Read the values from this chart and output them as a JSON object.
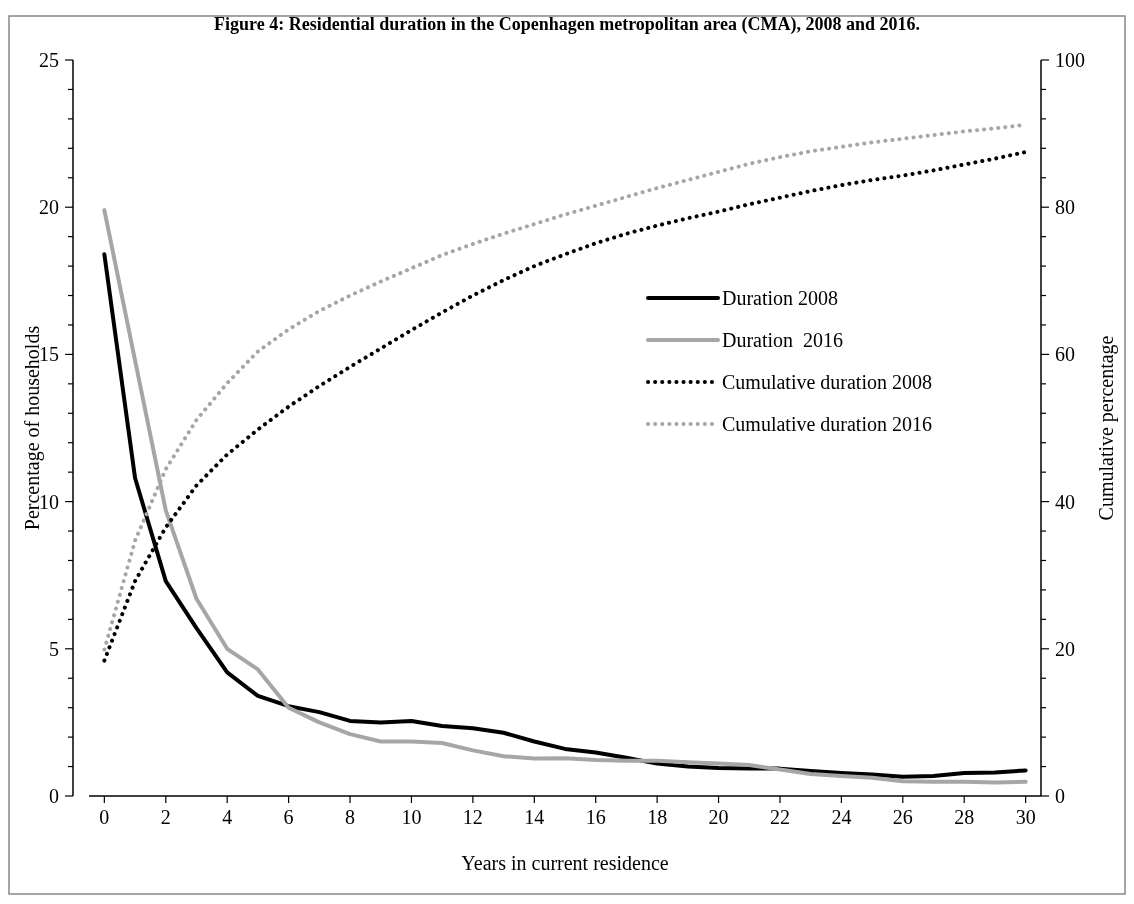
{
  "chart_data": {
    "type": "line",
    "title": "Figure 4: Residential duration in the Copenhagen metropolitan area (CMA), 2008 and 2016.",
    "xlabel": "Years in current residence",
    "ylabel": "Percentage of households",
    "y2label": "Cumulative percentage",
    "x": [
      0,
      1,
      2,
      3,
      4,
      5,
      6,
      7,
      8,
      9,
      10,
      11,
      12,
      13,
      14,
      15,
      16,
      17,
      18,
      19,
      20,
      21,
      22,
      23,
      24,
      25,
      26,
      27,
      28,
      29,
      30
    ],
    "xlim": [
      -0.5,
      30.5
    ],
    "xticks": [
      0,
      2,
      4,
      6,
      8,
      10,
      12,
      14,
      16,
      18,
      20,
      22,
      24,
      26,
      28,
      30
    ],
    "ylim": [
      0,
      25
    ],
    "yticks": [
      0,
      {
        "value": 1,
        "label": null
      },
      {
        "value": 2,
        "label": null
      },
      {
        "value": 3,
        "label": null
      },
      {
        "value": 4,
        "label": null
      },
      5,
      {
        "value": 6,
        "label": null
      },
      {
        "value": 7,
        "label": null
      },
      {
        "value": 8,
        "label": null
      },
      {
        "value": 9,
        "label": null
      },
      10,
      {
        "value": 11,
        "label": null
      },
      {
        "value": 12,
        "label": null
      },
      {
        "value": 13,
        "label": null
      },
      {
        "value": 14,
        "label": null
      },
      15,
      {
        "value": 16,
        "label": null
      },
      {
        "value": 17,
        "label": null
      },
      {
        "value": 18,
        "label": null
      },
      {
        "value": 19,
        "label": null
      },
      20,
      {
        "value": 21,
        "label": null
      },
      {
        "value": 22,
        "label": null
      },
      {
        "value": 23,
        "label": null
      },
      {
        "value": 24,
        "label": null
      },
      25
    ],
    "y2lim": [
      0,
      100
    ],
    "y2ticks": [
      0,
      {
        "value": 4,
        "label": null
      },
      {
        "value": 8,
        "label": null
      },
      {
        "value": 12,
        "label": null
      },
      {
        "value": 16,
        "label": null
      },
      20,
      {
        "value": 24,
        "label": null
      },
      {
        "value": 28,
        "label": null
      },
      {
        "value": 32,
        "label": null
      },
      {
        "value": 36,
        "label": null
      },
      40,
      {
        "value": 44,
        "label": null
      },
      {
        "value": 48,
        "label": null
      },
      {
        "value": 52,
        "label": null
      },
      {
        "value": 56,
        "label": null
      },
      60,
      {
        "value": 64,
        "label": null
      },
      {
        "value": 68,
        "label": null
      },
      {
        "value": 72,
        "label": null
      },
      {
        "value": 76,
        "label": null
      },
      80,
      {
        "value": 84,
        "label": null
      },
      {
        "value": 88,
        "label": null
      },
      {
        "value": 92,
        "label": null
      },
      {
        "value": 96,
        "label": null
      },
      100
    ],
    "legend": "right",
    "grid": false,
    "series": [
      {
        "name": "Duration 2008",
        "color": "#000000",
        "line_style": "solid",
        "values": [
          18.4,
          10.8,
          7.3,
          5.7,
          4.2,
          3.4,
          3.05,
          2.85,
          2.55,
          2.5,
          2.55,
          2.38,
          2.3,
          2.15,
          1.85,
          1.6,
          1.48,
          1.3,
          1.1,
          1.0,
          0.95,
          0.93,
          0.93,
          0.85,
          0.78,
          0.73,
          0.65,
          0.68,
          0.78,
          0.8,
          0.87
        ]
      },
      {
        "name": "Duration  2016",
        "color": "#a6a6a6",
        "line_style": "solid",
        "values": [
          19.9,
          14.8,
          9.7,
          6.7,
          5.0,
          4.3,
          3.0,
          2.5,
          2.1,
          1.85,
          1.85,
          1.8,
          1.55,
          1.35,
          1.27,
          1.28,
          1.22,
          1.2,
          1.2,
          1.15,
          1.1,
          1.05,
          0.9,
          0.75,
          0.68,
          0.62,
          0.5,
          0.48,
          0.48,
          0.46,
          0.48
        ]
      },
      {
        "name": "Cumulative duration 2008",
        "color": "#000000",
        "line_style": "dotted",
        "axis": "y2",
        "values": [
          18.4,
          29.2,
          36.5,
          42.2,
          46.4,
          49.8,
          52.9,
          55.7,
          58.3,
          60.8,
          63.3,
          65.7,
          68,
          70.1,
          72,
          73.6,
          75.1,
          76.4,
          77.5,
          78.5,
          79.4,
          80.4,
          81.3,
          82.2,
          83,
          83.7,
          84.3,
          85,
          85.8,
          86.6,
          87.5
        ]
      },
      {
        "name": "Cumulative duration 2016",
        "color": "#a6a6a6",
        "line_style": "dotted",
        "axis": "y2",
        "values": [
          19.9,
          34.7,
          44.4,
          51.1,
          56.1,
          60.4,
          63.4,
          65.9,
          68,
          69.9,
          71.7,
          73.5,
          75,
          76.4,
          77.7,
          79,
          80.2,
          81.4,
          82.6,
          83.7,
          84.8,
          85.9,
          86.8,
          87.6,
          88.2,
          88.8,
          89.3,
          89.8,
          90.3,
          90.7,
          91.2
        ]
      }
    ]
  }
}
